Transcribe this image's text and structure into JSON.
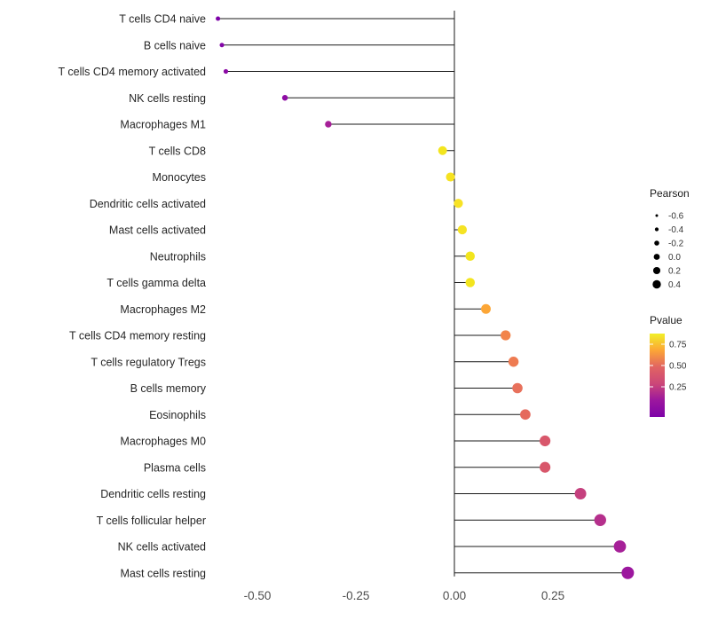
{
  "chart_data": {
    "type": "lollipop",
    "title": "",
    "xlabel": "",
    "ylabel": "",
    "xlim": [
      -0.68,
      0.5
    ],
    "grid": false,
    "x_ticks": [
      {
        "value": -0.5,
        "label": "-0.50"
      },
      {
        "value": -0.25,
        "label": "-0.25"
      },
      {
        "value": 0.0,
        "label": "0.00"
      },
      {
        "value": 0.25,
        "label": "0.25"
      }
    ],
    "points": [
      {
        "label": "T cells CD4 naive",
        "pearson": -0.6,
        "color": "#7e03a8"
      },
      {
        "label": "B cells naive",
        "pearson": -0.59,
        "color": "#8305a7"
      },
      {
        "label": "T cells CD4 memory activated",
        "pearson": -0.58,
        "color": "#8b09a5"
      },
      {
        "label": "NK cells resting",
        "pearson": -0.43,
        "color": "#8e0ca4"
      },
      {
        "label": "Macrophages M1",
        "pearson": -0.32,
        "color": "#a62098"
      },
      {
        "label": "T cells CD8",
        "pearson": -0.03,
        "color": "#f3e51e"
      },
      {
        "label": "Monocytes",
        "pearson": -0.01,
        "color": "#f6e220"
      },
      {
        "label": "Dendritic cells activated",
        "pearson": 0.01,
        "color": "#f7e225"
      },
      {
        "label": "Mast cells activated",
        "pearson": 0.02,
        "color": "#f5e324"
      },
      {
        "label": "Neutrophils",
        "pearson": 0.04,
        "color": "#f2e51d"
      },
      {
        "label": "T cells gamma delta",
        "pearson": 0.04,
        "color": "#f3e51e"
      },
      {
        "label": "Macrophages M2",
        "pearson": 0.08,
        "color": "#fca636"
      },
      {
        "label": "T cells CD4 memory resting",
        "pearson": 0.13,
        "color": "#f2844b"
      },
      {
        "label": "T cells regulatory  Tregs",
        "pearson": 0.15,
        "color": "#ee7b51"
      },
      {
        "label": "B cells memory",
        "pearson": 0.16,
        "color": "#e8715c"
      },
      {
        "label": "Eosinophils",
        "pearson": 0.18,
        "color": "#e56a5d"
      },
      {
        "label": "Macrophages M0",
        "pearson": 0.23,
        "color": "#d8576b"
      },
      {
        "label": "Plasma cells",
        "pearson": 0.23,
        "color": "#d8576b"
      },
      {
        "label": "Dendritic cells resting",
        "pearson": 0.32,
        "color": "#c5407e"
      },
      {
        "label": "T cells follicular helper",
        "pearson": 0.37,
        "color": "#b52f8c"
      },
      {
        "label": "NK cells activated",
        "pearson": 0.42,
        "color": "#a62098"
      },
      {
        "label": "Mast cells resting",
        "pearson": 0.44,
        "color": "#9c179e"
      }
    ],
    "legend_size": {
      "title": "Pearson",
      "entries": [
        {
          "label": "-0.6",
          "value": -0.6
        },
        {
          "label": "-0.4",
          "value": -0.4
        },
        {
          "label": "-0.2",
          "value": -0.2
        },
        {
          "label": "0.0",
          "value": 0.0
        },
        {
          "label": "0.2",
          "value": 0.2
        },
        {
          "label": "0.4",
          "value": 0.4
        }
      ],
      "dot_color": "#000000"
    },
    "legend_color": {
      "title": "Pvalue",
      "tick_labels": [
        "0.75",
        "0.50",
        "0.25"
      ],
      "gradient_top_to_bottom": [
        "#f1ef27",
        "#fca636",
        "#e16462",
        "#cc4778",
        "#9c179e",
        "#7e03a8"
      ]
    },
    "style": {
      "stem_color": "#1a1a1a",
      "category_text_color": "#262626",
      "axis_text_color": "#4d4d4d",
      "legend_title_color": "#1a1a1a",
      "legend_label_color": "#333333",
      "background": "#ffffff"
    }
  }
}
